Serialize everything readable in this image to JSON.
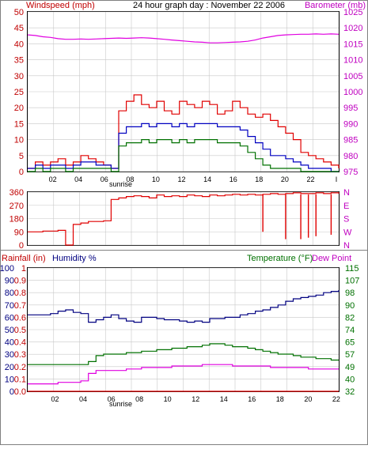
{
  "colors": {
    "red": "#e00000",
    "blue": "#0000c0",
    "green": "#007000",
    "magenta": "#e000e0",
    "navy": "#000080",
    "grid": "#c8c8c8",
    "axis_num_left": "#c00000",
    "axis_num_right": "#c000c0"
  },
  "chart_data": [
    {
      "id": "wind",
      "type": "line",
      "title": "24 hour graph day : November 22 2006",
      "ylabel": "Windspeed (mph)",
      "y2label": "Barometer (mb)",
      "ylim": [
        0,
        50
      ],
      "y2lim": [
        975,
        1025
      ],
      "y_ticks": [
        "0",
        "5",
        "10",
        "15",
        "20",
        "25",
        "30",
        "35",
        "40",
        "45",
        "50"
      ],
      "y2_ticks": [
        "975",
        "980",
        "985",
        "990",
        "995",
        "1000",
        "1005",
        "1010",
        "1015",
        "1020",
        "1025"
      ],
      "x_ticks": [
        "02",
        "04",
        "06",
        "08",
        "10",
        "12",
        "14",
        "16",
        "18",
        "20",
        "22",
        "I"
      ],
      "x_note": "sunrise",
      "series": [
        {
          "key": "gust",
          "color": "red",
          "y": [
            1,
            3,
            2,
            3,
            4,
            2,
            3,
            5,
            4,
            3,
            2,
            1,
            19,
            22,
            24,
            21,
            20,
            22,
            19,
            18,
            22,
            21,
            20,
            22,
            21,
            18,
            19,
            22,
            20,
            18,
            17,
            18,
            16,
            14,
            12,
            10,
            6,
            5,
            4,
            3,
            2,
            1
          ]
        },
        {
          "key": "avg",
          "color": "blue",
          "y": [
            1,
            2,
            1,
            2,
            2,
            1,
            2,
            3,
            3,
            2,
            2,
            1,
            12,
            14,
            14,
            15,
            14,
            15,
            15,
            14,
            15,
            14,
            15,
            15,
            15,
            14,
            14,
            14,
            13,
            11,
            9,
            7,
            5,
            5,
            4,
            3,
            2,
            1,
            1,
            1,
            0,
            0
          ]
        },
        {
          "key": "low",
          "color": "green",
          "y": [
            0,
            1,
            0,
            1,
            1,
            0,
            1,
            1,
            1,
            1,
            1,
            0,
            8,
            9,
            9,
            10,
            9,
            10,
            10,
            9,
            10,
            9,
            10,
            10,
            10,
            9,
            9,
            9,
            8,
            6,
            4,
            2,
            1,
            1,
            1,
            1,
            0,
            0,
            0,
            0,
            0,
            0
          ]
        },
        {
          "key": "barometer",
          "axis": "y2",
          "color": "magenta",
          "y": [
            1017.8,
            1017.6,
            1017.2,
            1017.0,
            1016.6,
            1016.4,
            1016.4,
            1016.5,
            1016.4,
            1016.5,
            1016.6,
            1016.7,
            1016.8,
            1016.7,
            1016.8,
            1016.9,
            1016.8,
            1016.6,
            1016.4,
            1016.2,
            1016.0,
            1015.8,
            1015.6,
            1015.5,
            1015.3,
            1015.3,
            1015.4,
            1015.5,
            1015.6,
            1015.8,
            1016.2,
            1016.8,
            1017.2,
            1017.6,
            1017.8,
            1017.9,
            1018.0,
            1018.0,
            1018.1,
            1018.0,
            1018.1,
            1018.0
          ]
        }
      ]
    },
    {
      "id": "direction",
      "type": "line",
      "ylim": [
        0,
        360
      ],
      "y_ticks": [
        "0",
        "90",
        "180",
        "270",
        "360"
      ],
      "y2_ticks": [
        "N",
        "W",
        "S",
        "E",
        "N"
      ],
      "series": [
        {
          "key": "direction",
          "color": "red",
          "y": [
            90,
            90,
            95,
            95,
            100,
            0,
            140,
            150,
            160,
            160,
            165,
            310,
            320,
            330,
            335,
            330,
            320,
            340,
            330,
            335,
            330,
            340,
            335,
            330,
            340,
            335,
            340,
            345,
            340,
            345,
            340,
            345,
            350,
            345,
            350,
            355,
            350,
            350,
            355,
            350,
            355,
            350
          ]
        },
        {
          "key": "direction_dips",
          "color": "red",
          "x_index": [
            31,
            34,
            36,
            37,
            38,
            40
          ],
          "y": [
            90,
            40,
            40,
            50,
            60,
            70
          ]
        }
      ]
    },
    {
      "id": "humidity",
      "type": "line",
      "ylabel": "Rainfall (in)",
      "ylabel2": "Humidity %",
      "y2label": "Temperature (°F)",
      "y2label2": "Dew Point",
      "ylim": [
        0,
        100
      ],
      "y_ticks": [
        "0",
        "10",
        "20",
        "30",
        "40",
        "50",
        "60",
        "70",
        "80",
        "90",
        "100"
      ],
      "y_ticks_inner": [
        "0.0",
        "0.1",
        "0.2",
        "0.3",
        "0.4",
        "0.5",
        "0.6",
        "0.7",
        "0.8",
        "0.9",
        "1"
      ],
      "y2lim": [
        32,
        115
      ],
      "y2_ticks": [
        "32",
        "40",
        "49",
        "57",
        "65",
        "74",
        "82",
        "90",
        "98",
        "107",
        "115"
      ],
      "x_ticks": [
        "02",
        "04",
        "06",
        "08",
        "10",
        "12",
        "14",
        "16",
        "18",
        "20",
        "22"
      ],
      "x_note": "sunrise",
      "series": [
        {
          "key": "humidity",
          "color": "navy",
          "y": [
            62,
            62,
            62,
            63,
            65,
            66,
            64,
            63,
            56,
            58,
            60,
            62,
            59,
            57,
            56,
            60,
            60,
            59,
            58,
            58,
            57,
            56,
            57,
            56,
            59,
            59,
            60,
            60,
            62,
            63,
            65,
            66,
            68,
            70,
            73,
            75,
            76,
            77,
            78,
            80,
            81,
            82
          ]
        },
        {
          "key": "temperature",
          "axis": "y2",
          "color": "green",
          "y": [
            50,
            50,
            50,
            50,
            50,
            50,
            50,
            50,
            52,
            56,
            57,
            57,
            57,
            58,
            58,
            59,
            59,
            60,
            60,
            61,
            61,
            62,
            62,
            63,
            64,
            64,
            63,
            62,
            62,
            61,
            60,
            59,
            58,
            57,
            57,
            56,
            55,
            55,
            54,
            54,
            53,
            53
          ]
        },
        {
          "key": "dew_point",
          "axis": "y2",
          "color": "magenta",
          "y": [
            37,
            37,
            37,
            37,
            38,
            38,
            38,
            39,
            44,
            46,
            46,
            46,
            46,
            47,
            47,
            48,
            48,
            48,
            48,
            49,
            49,
            49,
            49,
            50,
            50,
            50,
            50,
            49,
            49,
            49,
            49,
            49,
            48,
            48,
            48,
            48,
            48,
            47,
            47,
            47,
            47,
            47
          ]
        },
        {
          "key": "rainfall",
          "color": "red",
          "y": [
            0,
            0,
            0,
            0,
            0,
            0,
            0,
            0,
            0,
            0,
            0,
            0,
            0,
            0,
            0,
            0,
            0,
            0,
            0,
            0,
            0,
            0,
            0,
            0,
            0,
            0,
            0,
            0,
            0,
            0,
            0,
            0,
            0,
            0,
            0,
            0,
            0,
            0,
            0,
            0,
            0,
            0
          ]
        }
      ]
    }
  ]
}
